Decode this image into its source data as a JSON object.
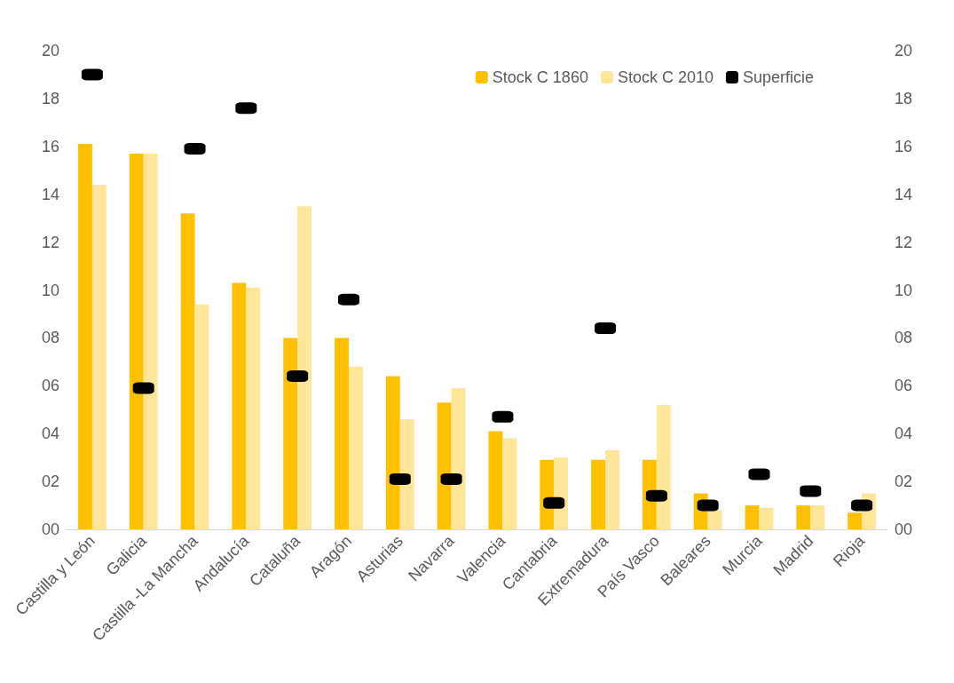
{
  "chart_data": {
    "type": "bar",
    "categories": [
      "Castilla y León",
      "Galicia",
      "Castilla -La Mancha",
      "Andalucía",
      "Cataluña",
      "Aragón",
      "Asturias",
      "Navarra",
      "Valencia",
      "Cantabria",
      "Extremadura",
      "País Vasco",
      "Baleares",
      "Murcia",
      "Madrid",
      "Rioja"
    ],
    "series": [
      {
        "name": "Stock C 1860",
        "color": "#ffc000",
        "values": [
          16.1,
          15.7,
          13.2,
          10.3,
          8.0,
          8.0,
          6.4,
          5.3,
          4.1,
          2.9,
          2.9,
          2.9,
          1.5,
          1.0,
          1.0,
          0.7
        ]
      },
      {
        "name": "Stock C 2010",
        "color": "#ffe699",
        "values": [
          14.4,
          15.7,
          9.4,
          10.1,
          13.5,
          6.8,
          4.6,
          5.9,
          3.8,
          3.0,
          3.3,
          5.2,
          0.8,
          0.9,
          1.0,
          1.5
        ]
      },
      {
        "name": "Superficie",
        "type": "scatter",
        "marker": "square",
        "color": "#000000",
        "values": [
          19.0,
          5.9,
          15.9,
          17.6,
          6.4,
          9.6,
          2.1,
          2.1,
          4.7,
          1.1,
          8.4,
          1.4,
          1.0,
          2.3,
          1.6,
          1.0
        ]
      }
    ],
    "ylim": [
      0,
      20
    ],
    "yticks": [
      {
        "value": 0,
        "label": "00"
      },
      {
        "value": 2,
        "label": "02"
      },
      {
        "value": 4,
        "label": "04"
      },
      {
        "value": 6,
        "label": "06"
      },
      {
        "value": 8,
        "label": "08"
      },
      {
        "value": 10,
        "label": "10"
      },
      {
        "value": 12,
        "label": "12"
      },
      {
        "value": 14,
        "label": "14"
      },
      {
        "value": 16,
        "label": "16"
      },
      {
        "value": 18,
        "label": "18"
      },
      {
        "value": 20,
        "label": "20"
      }
    ],
    "y2lim": [
      0,
      20
    ],
    "y2ticks": [
      {
        "value": 0,
        "label": "00"
      },
      {
        "value": 2,
        "label": "02"
      },
      {
        "value": 4,
        "label": "04"
      },
      {
        "value": 6,
        "label": "06"
      },
      {
        "value": 8,
        "label": "08"
      },
      {
        "value": 10,
        "label": "10"
      },
      {
        "value": 12,
        "label": "12"
      },
      {
        "value": 14,
        "label": "14"
      },
      {
        "value": 16,
        "label": "16"
      },
      {
        "value": 18,
        "label": "18"
      },
      {
        "value": 20,
        "label": "20"
      }
    ],
    "legend": "top right"
  }
}
